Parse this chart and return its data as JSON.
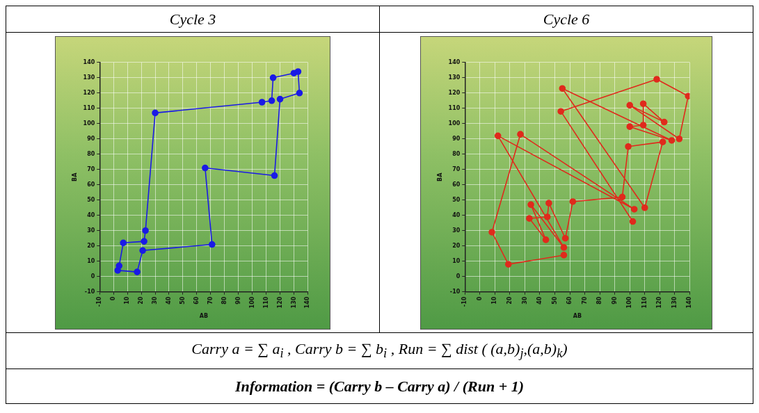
{
  "chart_data": [
    {
      "type": "line",
      "title": "Cycle 3",
      "xlabel": "AB",
      "ylabel": "BA",
      "grid": true,
      "marker": "circle",
      "line_style": "solid",
      "xlim": [
        -10,
        140
      ],
      "ylim": [
        -10,
        140
      ],
      "xticks": [
        -10,
        0,
        10,
        20,
        30,
        40,
        50,
        60,
        70,
        80,
        90,
        100,
        110,
        120,
        130,
        140
      ],
      "yticks": [
        -10,
        0,
        10,
        20,
        30,
        40,
        50,
        60,
        70,
        80,
        90,
        100,
        110,
        120,
        130,
        140
      ],
      "series": [
        {
          "color": "#1a1ae6",
          "x": [
            3,
            17,
            21,
            71,
            66,
            116,
            120,
            134,
            133,
            130,
            115,
            114,
            107,
            30,
            23,
            22,
            7,
            4
          ],
          "values": [
            4,
            3,
            17,
            21,
            71,
            66,
            116,
            120,
            134,
            133,
            130,
            115,
            114,
            107,
            30,
            23,
            22,
            7
          ]
        }
      ]
    },
    {
      "type": "line",
      "title": "Cycle 6",
      "xlabel": "AB",
      "ylabel": "BA",
      "grid": true,
      "marker": "circle",
      "line_style": "solid",
      "xlim": [
        -10,
        140
      ],
      "ylim": [
        -10,
        140
      ],
      "xticks": [
        -10,
        0,
        10,
        20,
        30,
        40,
        50,
        60,
        70,
        80,
        90,
        100,
        110,
        120,
        130,
        140
      ],
      "yticks": [
        -10,
        0,
        10,
        20,
        30,
        40,
        50,
        60,
        70,
        80,
        90,
        100,
        110,
        120,
        130,
        140
      ],
      "series": [
        {
          "color": "#e02a1c",
          "x": [
            56,
            19,
            8,
            27,
            103,
            12,
            56,
            34,
            44,
            33,
            45,
            46,
            57,
            62,
            95,
            99,
            122,
            110,
            55,
            128,
            100,
            109,
            109,
            123,
            100,
            133,
            139,
            118,
            54,
            102
          ],
          "values": [
            14,
            8,
            29,
            93,
            44,
            92,
            19,
            47,
            24,
            38,
            39,
            48,
            25,
            49,
            52,
            85,
            88,
            45,
            123,
            89,
            98,
            99,
            113,
            101,
            112,
            90,
            118,
            129,
            108,
            36
          ]
        }
      ]
    },
    {
      "type": "other",
      "annotations": [
        "Carry a = ∑ a$_{i}$ , Carry b = ∑ b$_{i}$ , Run = ∑ dist ( (a,b)$_{j}$,(a,b)$_{k}$)",
        "Information = (Carry b – Carry a) / (Run + 1)"
      ]
    }
  ]
}
